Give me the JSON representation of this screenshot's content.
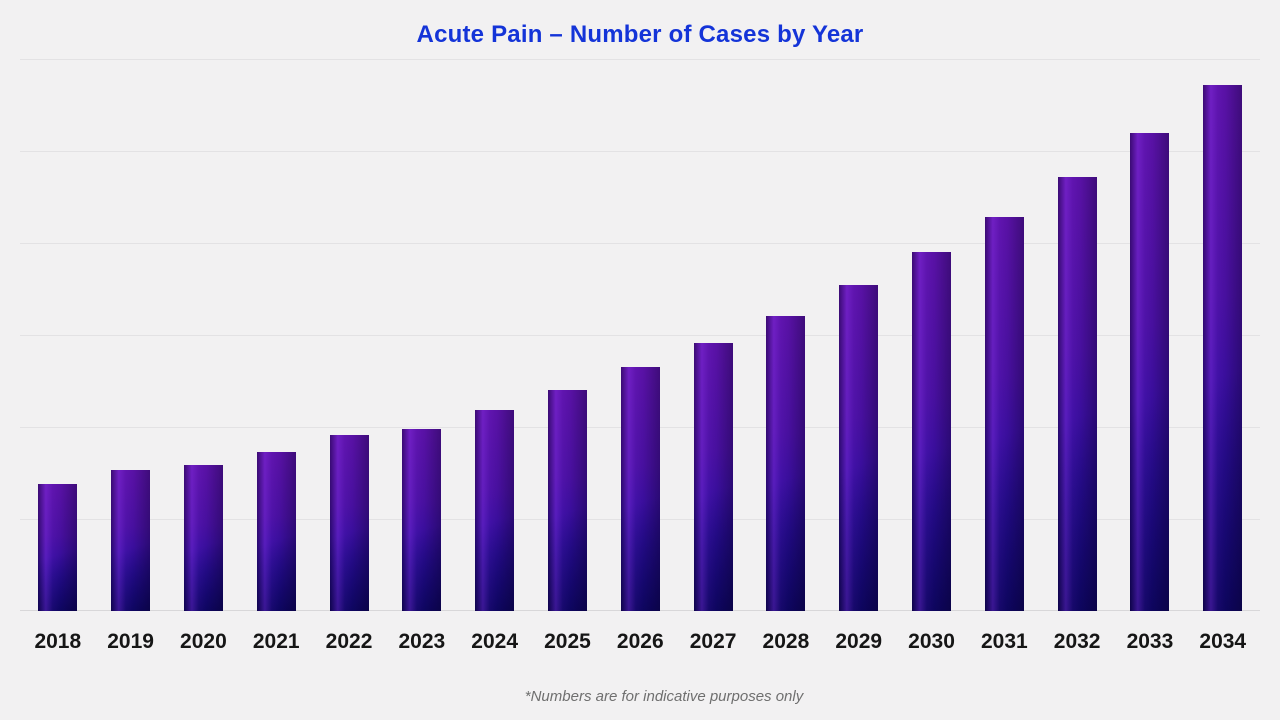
{
  "page": {
    "background_color": "#f2f1f2"
  },
  "header": {
    "title": "Acute Pain – Number of Cases by Year",
    "title_color": "#1434d8"
  },
  "footnote": {
    "text": "*Numbers are for indicative purposes only",
    "color": "#6f6f6f"
  },
  "chart_data": {
    "type": "bar",
    "title": "Acute Pain – Number of Cases by Year",
    "categories": [
      "2018",
      "2019",
      "2020",
      "2021",
      "2022",
      "2023",
      "2024",
      "2025",
      "2026",
      "2027",
      "2028",
      "2029",
      "2030",
      "2031",
      "2032",
      "2033",
      "2034"
    ],
    "values": [
      24.2,
      26.8,
      27.8,
      30.2,
      33.5,
      34.6,
      38.2,
      42.0,
      46.4,
      51.0,
      56.1,
      62.0,
      68.3,
      74.9,
      82.5,
      90.9,
      100
    ],
    "values_note": "Relative bar heights (tallest bar 2034 = 100); chart displays no numeric y-axis labels or data labels",
    "xlabel": "",
    "ylabel": "",
    "legend": "none",
    "grid": {
      "horizontal_gridlines_above_baseline": 6,
      "baseline_visible": true,
      "gridline_color": "#e3e2e4",
      "baseline_color": "#d8d7d9"
    },
    "bar_colors": {
      "gradient_top": "#5c12aa",
      "gradient_bottom": "#1a0a9a",
      "highlight_band": "#7a1fd0",
      "shadow_corner": "#060338"
    },
    "x_tick_label_color": "#161616"
  }
}
